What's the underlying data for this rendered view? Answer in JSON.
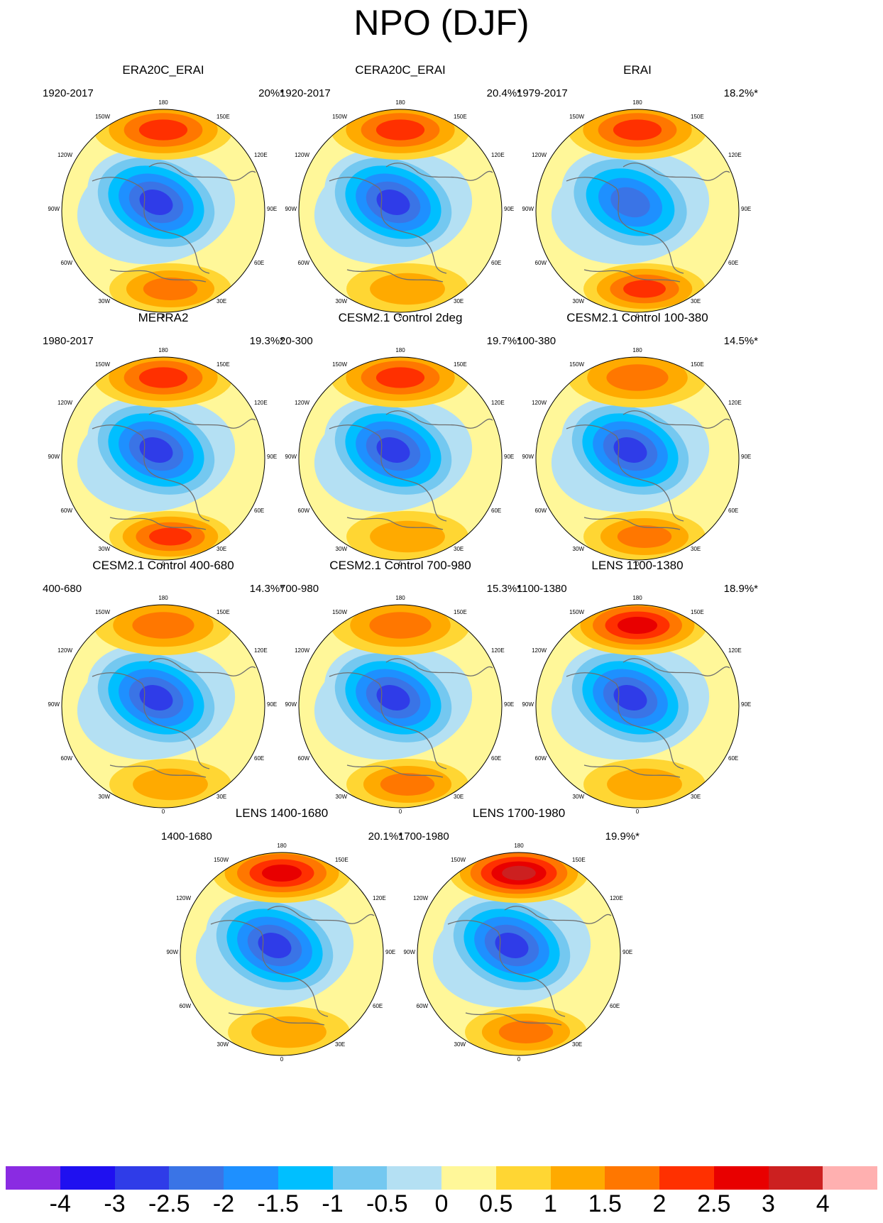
{
  "title": "NPO (DJF)",
  "labels": {
    "lon_top": "180",
    "lon_150w": "150W",
    "lon_150e": "150E",
    "lon_120w": "120W",
    "lon_120e": "120E",
    "lon_90w": "90W",
    "lon_90e": "90E",
    "lon_60w": "60W",
    "lon_60e": "60E",
    "lon_30w": "30W",
    "lon_30e": "30E",
    "lon_bottom": "0"
  },
  "panels": [
    {
      "title": "ERA20C_ERAI",
      "period": "1920-2017",
      "pct": "20%*",
      "pac_peak": 2,
      "atl_peak": 1.5,
      "low_min": -3
    },
    {
      "title": "CERA20C_ERAI",
      "period": "1920-2017",
      "pct": "20.4%*",
      "pac_peak": 2,
      "atl_peak": 1,
      "low_min": -3
    },
    {
      "title": "ERAI",
      "period": "1979-2017",
      "pct": "18.2%*",
      "pac_peak": 2,
      "atl_peak": 2,
      "low_min": -2.5
    },
    {
      "title": "MERRA2",
      "period": "1980-2017",
      "pct": "19.3%*",
      "pac_peak": 2,
      "atl_peak": 2,
      "low_min": -3
    },
    {
      "title": "CESM2.1 Control 2deg",
      "period": "20-300",
      "pct": "19.7%*",
      "pac_peak": 2,
      "atl_peak": 1,
      "low_min": -3
    },
    {
      "title": "CESM2.1 Control 100-380",
      "period": "100-380",
      "pct": "14.5%*",
      "pac_peak": 1.5,
      "atl_peak": 1.5,
      "low_min": -3
    },
    {
      "title": "CESM2.1 Control 400-680",
      "period": "400-680",
      "pct": "14.3%*",
      "pac_peak": 1.5,
      "atl_peak": 1,
      "low_min": -3
    },
    {
      "title": "CESM2.1 Control 700-980",
      "period": "700-980",
      "pct": "15.3%*",
      "pac_peak": 1.5,
      "atl_peak": 1.5,
      "low_min": -3
    },
    {
      "title": "LENS 1100-1380",
      "period": "1100-1380",
      "pct": "18.9%*",
      "pac_peak": 2.5,
      "atl_peak": 1,
      "low_min": -3
    },
    {
      "title": "LENS 1400-1680",
      "period": "1400-1680",
      "pct": "20.1%*",
      "pac_peak": 2.5,
      "atl_peak": 1,
      "low_min": -3
    },
    {
      "title": "LENS 1700-1980",
      "period": "1700-1980",
      "pct": "19.9%*",
      "pac_peak": 3,
      "atl_peak": 1.5,
      "low_min": -3
    }
  ],
  "colorbar": {
    "labels": [
      "-4",
      "-3",
      "-2.5",
      "-2",
      "-1.5",
      "-1",
      "-0.5",
      "0",
      "0.5",
      "1",
      "1.5",
      "2",
      "2.5",
      "3",
      "4"
    ],
    "colors": [
      "#8a2be2",
      "#1f10f0",
      "#2f3ce8",
      "#3a74e6",
      "#1e90ff",
      "#00bfff",
      "#74c8f0",
      "#b4e0f3",
      "#fff799",
      "#ffd633",
      "#ffaa00",
      "#ff7700",
      "#ff3000",
      "#e80000",
      "#cc2020",
      "#ffb0b0"
    ],
    "thresholds": [
      -4,
      -3,
      -2.5,
      -2,
      -1.5,
      -1,
      -0.5,
      0,
      0.5,
      1,
      1.5,
      2,
      2.5,
      3,
      4
    ]
  },
  "colors": {
    "coastline": "#6e6e6e",
    "background": "#ffffff"
  }
}
